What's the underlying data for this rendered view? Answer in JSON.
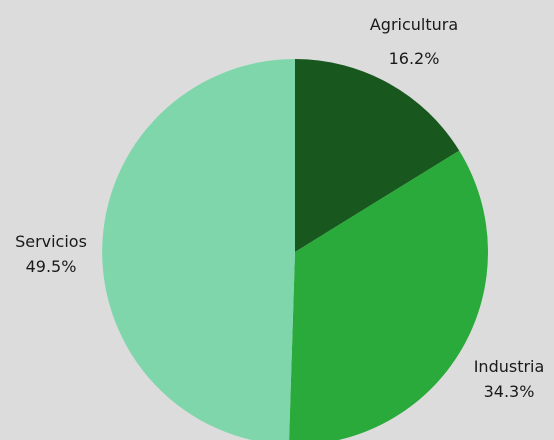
{
  "chart_data": {
    "type": "pie",
    "title": "",
    "background": "#dcdcdc",
    "slices": [
      {
        "label": "Agricultura",
        "value": 16.2,
        "value_label": "16.2%",
        "color": "#18581f"
      },
      {
        "label": "Industria",
        "value": 34.3,
        "value_label": "34.3%",
        "color": "#2aaa3a"
      },
      {
        "label": "Servicios",
        "value": 49.5,
        "value_label": "49.5%",
        "color": "#80d6ab"
      }
    ],
    "start_angle": "12 o'clock",
    "direction": "clockwise",
    "legend": "none"
  }
}
